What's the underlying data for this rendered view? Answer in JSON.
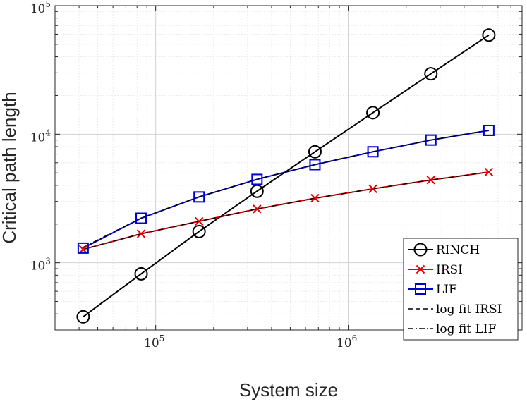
{
  "chart_data": {
    "type": "line",
    "title": "",
    "xlabel": "System size",
    "ylabel": "Critical path length",
    "xscale": "log",
    "yscale": "log",
    "xlim": [
      30000,
      8000000
    ],
    "ylim": [
      300,
      100000
    ],
    "grid": true,
    "legend_position": "bottom-right",
    "x_ticks": [
      {
        "value": 100000,
        "base": "10",
        "exp": "5"
      },
      {
        "value": 1000000,
        "base": "10",
        "exp": "6"
      }
    ],
    "y_ticks": [
      {
        "value": 1000,
        "base": "10",
        "exp": "3"
      },
      {
        "value": 10000,
        "base": "10",
        "exp": "4"
      },
      {
        "value": 100000,
        "base": "10",
        "exp": "5"
      }
    ],
    "x": [
      42000,
      84000,
      168000,
      336000,
      672000,
      1344000,
      2688000,
      5376000
    ],
    "series": [
      {
        "name": "RINCH",
        "color": "#000000",
        "marker": "circle",
        "line": "solid",
        "values": [
          380,
          820,
          1750,
          3600,
          7300,
          14700,
          29500,
          59000
        ]
      },
      {
        "name": "IRSI",
        "color": "#e00000",
        "marker": "x",
        "line": "solid",
        "values": [
          1270,
          1680,
          2100,
          2620,
          3180,
          3760,
          4400,
          5080
        ]
      },
      {
        "name": "LIF",
        "color": "#0000d0",
        "marker": "square",
        "line": "solid",
        "values": [
          1300,
          2220,
          3250,
          4450,
          5800,
          7300,
          9000,
          10700
        ]
      },
      {
        "name": "log fit IRSI",
        "color": "#000000",
        "marker": "none",
        "line": "dashed",
        "values": [
          1270,
          1680,
          2100,
          2620,
          3180,
          3760,
          4400,
          5080
        ]
      },
      {
        "name": "log fit LIF",
        "color": "#000000",
        "marker": "none",
        "line": "dashdot",
        "values": [
          1320,
          2230,
          3260,
          4460,
          5810,
          7310,
          9010,
          10750
        ]
      }
    ]
  }
}
